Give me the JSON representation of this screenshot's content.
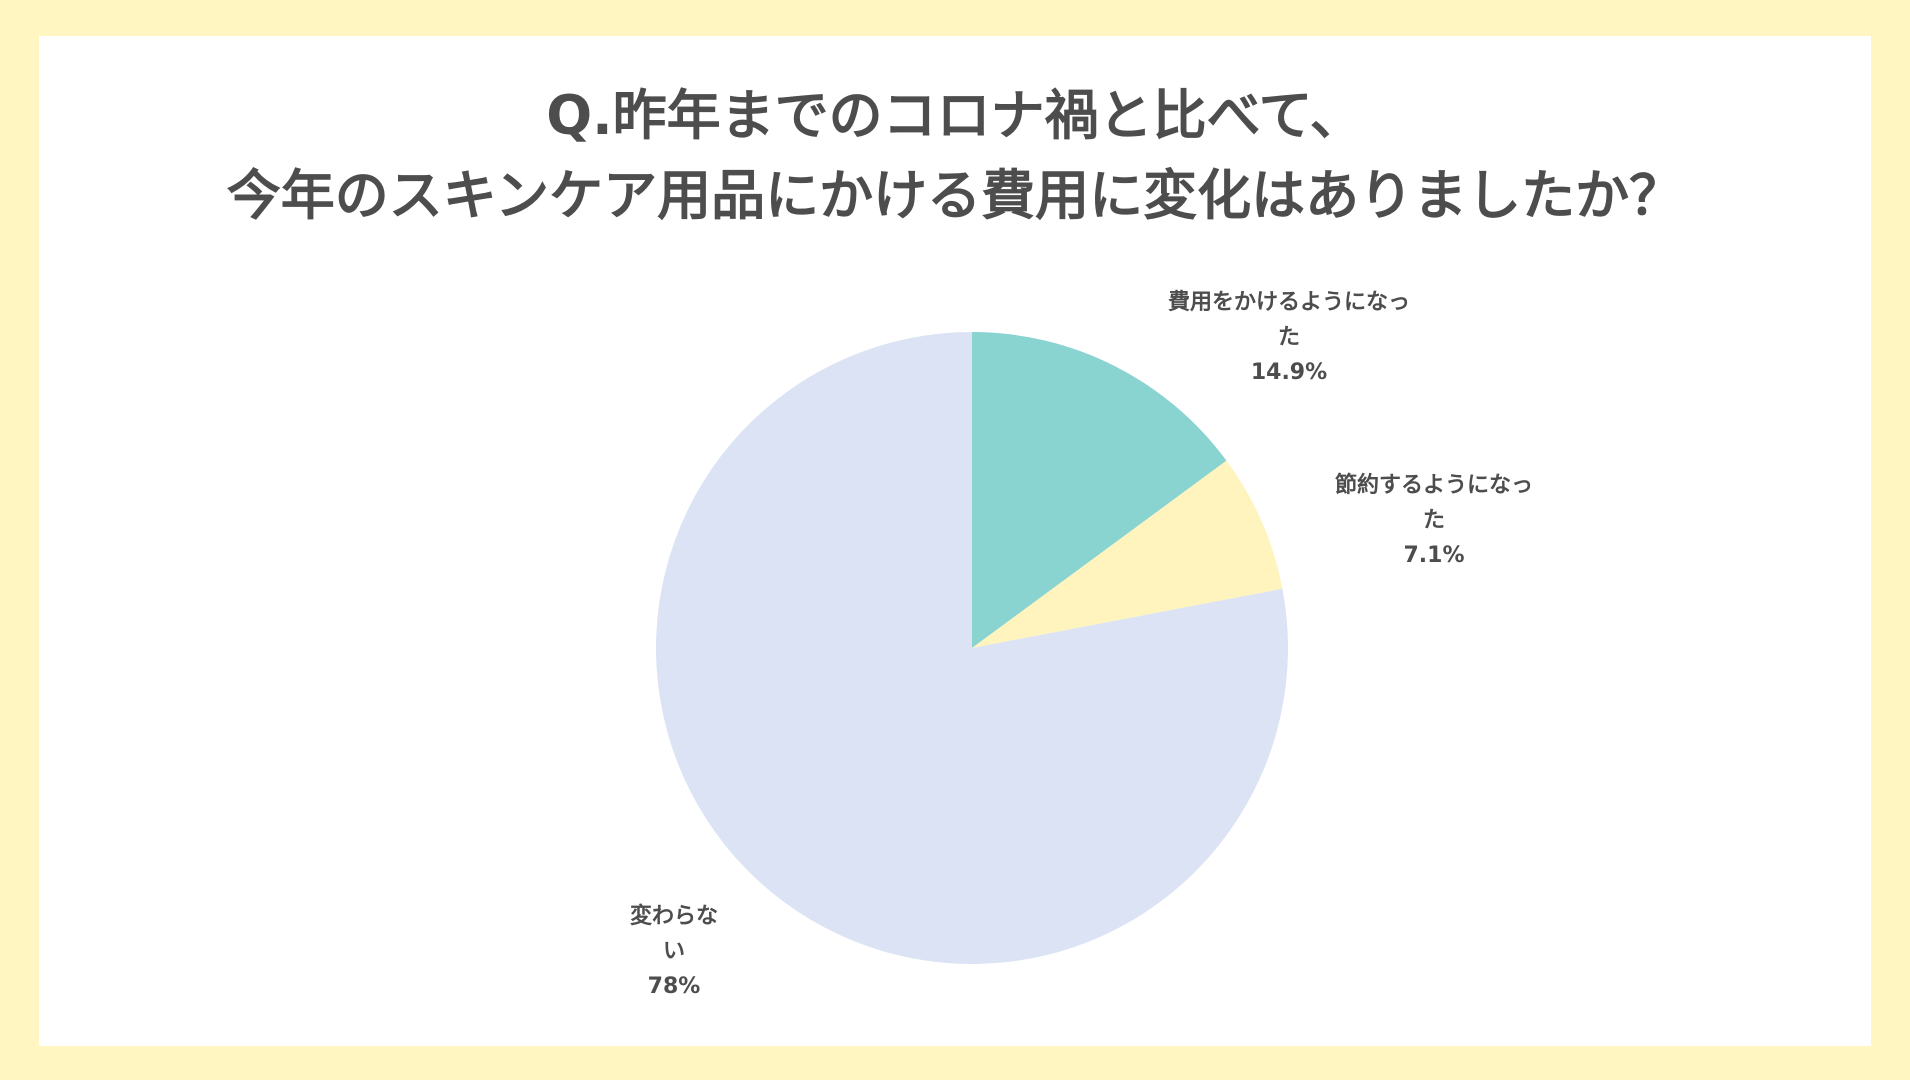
{
  "title_lines": [
    "Q.昨年までのコロナ禍と比べて、",
    "今年のスキンケア用品にかける費用に変化はありましたか？"
  ],
  "colors": {
    "background": "#fff6c2",
    "card": "#ffffff",
    "text": "#4d4d4d"
  },
  "chart_data": {
    "type": "pie",
    "title": "Q.昨年までのコロナ禍と比べて、今年のスキンケア用品にかける費用に変化はありましたか？",
    "start_angle_deg": 0,
    "direction": "clockwise",
    "slices": [
      {
        "label_lines": [
          "費用をかけるようになっ",
          "た"
        ],
        "value_label": "14.9%",
        "value": 14.9,
        "color": "#89d3d0"
      },
      {
        "label_lines": [
          "節約するようになっ",
          "た"
        ],
        "value_label": "7.1%",
        "value": 7.1,
        "color": "#fff4bd"
      },
      {
        "label_lines": [
          "変わらな",
          "い"
        ],
        "value_label": "78%",
        "value": 78,
        "color": "#dbe3f4"
      }
    ]
  }
}
